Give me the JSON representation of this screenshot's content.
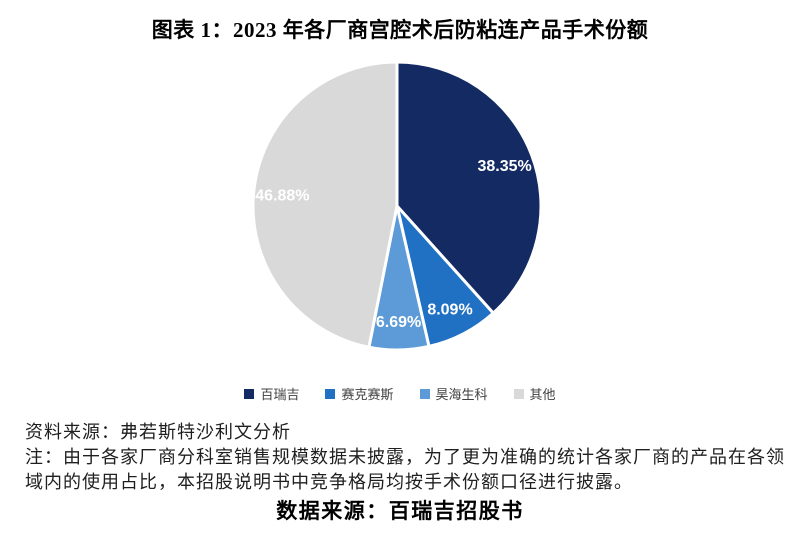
{
  "title": "图表 1：2023 年各厂商宫腔术后防粘连产品手术份额",
  "chart_data": {
    "type": "pie",
    "title": "图表 1：2023 年各厂商宫腔术后防粘连产品手术份额",
    "unit": "%",
    "start_angle_deg": 0,
    "direction": "clockwise",
    "legend_position": "bottom",
    "categories": [
      "百瑞吉",
      "赛克赛斯",
      "昊海生科",
      "其他"
    ],
    "values": [
      38.35,
      8.09,
      6.69,
      46.88
    ],
    "slice_labels": [
      "38.35%",
      "8.09%",
      "6.69%",
      "46.88%"
    ],
    "colors": [
      "#132A63",
      "#2070C4",
      "#5C9BD7",
      "#D9D9D9"
    ],
    "slice_label_color": "#FFFFFF",
    "slice_border_color": "#FFFFFF"
  },
  "footer": {
    "source_line": "资料来源：弗若斯特沙利文分析",
    "note_line1": "注：由于各家厂商分科室销售规模数据未披露，为了更为准确的统计各家厂商的产品在各领",
    "note_line2": "域内的使用占比，本招股说明书中竞争格局均按手术份额口径进行披露。",
    "data_source_line": "数据来源：百瑞吉招股书"
  }
}
